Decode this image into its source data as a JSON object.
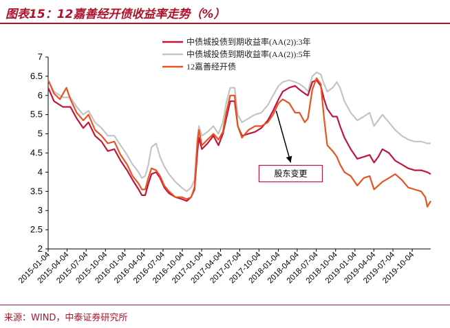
{
  "header": {
    "title": "图表15：12嘉善经开债收益率走势（%）"
  },
  "footer": {
    "source": "来源：WIND，中泰证券研究所"
  },
  "colors": {
    "accent": "#b0112a",
    "series_3y": "#c0143c",
    "series_5y": "#c4c4c4",
    "series_bond": "#e8521f"
  },
  "chart_data": {
    "type": "line",
    "title": "",
    "xlabel": "",
    "ylabel": "",
    "ylim": [
      2,
      7
    ],
    "yticks": [
      "2",
      "2.5",
      "3",
      "3.5",
      "4",
      "4.5",
      "5",
      "5.5",
      "6",
      "6.5",
      "7"
    ],
    "grid": false,
    "legend_position": "top-right",
    "x_tick_labels": [
      "2015-01-04",
      "2015-04-04",
      "2015-07-04",
      "2015-10-04",
      "2016-01-04",
      "2016-04-04",
      "2016-07-04",
      "2016-10-04",
      "2017-01-04",
      "2017-04-04",
      "2017-07-04",
      "2017-10-04",
      "2018-01-04",
      "2018-04-04",
      "2018-07-04",
      "2018-10-04",
      "2019-01-04",
      "2019-04-04",
      "2019-07-04",
      "2019-10-04"
    ],
    "x_start": "2015-01-04",
    "x_end": "2019-12-31",
    "annotation": {
      "text": "股东变更",
      "arrow_from_date": "2017-12-25",
      "arrow_from_value": 5.6,
      "arrow_to_date": "2018-03-04",
      "arrow_to_value": 4.25
    },
    "series": [
      {
        "name": "中债城投债到期收益率(AA(2)):3年",
        "color": "#c0143c",
        "points": [
          [
            "2015-01-04",
            6.2
          ],
          [
            "2015-02-01",
            5.85
          ],
          [
            "2015-03-15",
            5.7
          ],
          [
            "2015-04-20",
            5.7
          ],
          [
            "2015-05-20",
            5.4
          ],
          [
            "2015-06-20",
            5.15
          ],
          [
            "2015-07-15",
            5.3
          ],
          [
            "2015-08-15",
            4.95
          ],
          [
            "2015-09-15",
            4.8
          ],
          [
            "2015-10-15",
            4.55
          ],
          [
            "2015-11-15",
            4.6
          ],
          [
            "2015-12-15",
            4.3
          ],
          [
            "2016-01-15",
            4.05
          ],
          [
            "2016-02-10",
            3.8
          ],
          [
            "2016-03-10",
            3.55
          ],
          [
            "2016-03-25",
            3.4
          ],
          [
            "2016-04-10",
            3.4
          ],
          [
            "2016-04-25",
            3.7
          ],
          [
            "2016-05-10",
            3.95
          ],
          [
            "2016-06-01",
            4.0
          ],
          [
            "2016-06-20",
            3.85
          ],
          [
            "2016-07-10",
            3.6
          ],
          [
            "2016-08-01",
            3.45
          ],
          [
            "2016-09-01",
            3.35
          ],
          [
            "2016-10-01",
            3.3
          ],
          [
            "2016-10-25",
            3.25
          ],
          [
            "2016-11-15",
            3.35
          ],
          [
            "2016-12-01",
            3.55
          ],
          [
            "2016-12-15",
            4.55
          ],
          [
            "2016-12-22",
            4.9
          ],
          [
            "2017-01-05",
            4.6
          ],
          [
            "2017-02-01",
            4.75
          ],
          [
            "2017-03-01",
            4.95
          ],
          [
            "2017-03-25",
            4.7
          ],
          [
            "2017-04-15",
            5.0
          ],
          [
            "2017-05-01",
            5.4
          ],
          [
            "2017-05-20",
            5.85
          ],
          [
            "2017-06-10",
            5.85
          ],
          [
            "2017-06-25",
            5.2
          ],
          [
            "2017-07-15",
            4.95
          ],
          [
            "2017-08-15",
            5.0
          ],
          [
            "2017-09-15",
            5.05
          ],
          [
            "2017-10-15",
            5.15
          ],
          [
            "2017-11-15",
            5.35
          ],
          [
            "2017-12-10",
            5.6
          ],
          [
            "2018-01-05",
            5.9
          ],
          [
            "2018-01-25",
            6.1
          ],
          [
            "2018-02-25",
            6.2
          ],
          [
            "2018-03-25",
            6.25
          ],
          [
            "2018-04-15",
            6.15
          ],
          [
            "2018-05-10",
            6.05
          ],
          [
            "2018-05-25",
            6.0
          ],
          [
            "2018-06-15",
            6.35
          ],
          [
            "2018-07-05",
            6.4
          ],
          [
            "2018-07-25",
            6.25
          ],
          [
            "2018-08-10",
            5.9
          ],
          [
            "2018-08-25",
            5.65
          ],
          [
            "2018-09-20",
            5.45
          ],
          [
            "2018-10-10",
            5.45
          ],
          [
            "2018-10-25",
            5.2
          ],
          [
            "2018-11-15",
            4.9
          ],
          [
            "2018-12-15",
            4.6
          ],
          [
            "2019-01-15",
            4.35
          ],
          [
            "2019-02-15",
            4.4
          ],
          [
            "2019-03-15",
            4.45
          ],
          [
            "2019-04-05",
            4.25
          ],
          [
            "2019-04-25",
            4.4
          ],
          [
            "2019-05-15",
            4.6
          ],
          [
            "2019-06-15",
            4.5
          ],
          [
            "2019-07-15",
            4.3
          ],
          [
            "2019-08-15",
            4.2
          ],
          [
            "2019-09-15",
            4.1
          ],
          [
            "2019-10-15",
            4.05
          ],
          [
            "2019-11-15",
            4.05
          ],
          [
            "2019-12-15",
            4.0
          ],
          [
            "2019-12-31",
            3.95
          ]
        ]
      },
      {
        "name": "中债城投债到期收益率(AA(2)):5年",
        "color": "#c4c4c4",
        "points": [
          [
            "2015-01-04",
            6.4
          ],
          [
            "2015-02-01",
            6.1
          ],
          [
            "2015-03-15",
            5.95
          ],
          [
            "2015-04-20",
            5.95
          ],
          [
            "2015-05-20",
            5.7
          ],
          [
            "2015-06-20",
            5.5
          ],
          [
            "2015-07-15",
            5.6
          ],
          [
            "2015-08-15",
            5.3
          ],
          [
            "2015-09-15",
            5.15
          ],
          [
            "2015-10-15",
            4.95
          ],
          [
            "2015-11-15",
            4.95
          ],
          [
            "2015-12-15",
            4.7
          ],
          [
            "2016-01-15",
            4.45
          ],
          [
            "2016-02-10",
            4.2
          ],
          [
            "2016-03-10",
            4.0
          ],
          [
            "2016-03-25",
            3.85
          ],
          [
            "2016-04-10",
            3.9
          ],
          [
            "2016-04-25",
            4.2
          ],
          [
            "2016-05-10",
            4.65
          ],
          [
            "2016-06-01",
            4.75
          ],
          [
            "2016-06-20",
            4.4
          ],
          [
            "2016-07-10",
            4.15
          ],
          [
            "2016-08-01",
            3.95
          ],
          [
            "2016-09-01",
            3.75
          ],
          [
            "2016-10-01",
            3.6
          ],
          [
            "2016-10-25",
            3.5
          ],
          [
            "2016-11-15",
            3.6
          ],
          [
            "2016-12-01",
            3.8
          ],
          [
            "2016-12-15",
            4.9
          ],
          [
            "2016-12-22",
            5.2
          ],
          [
            "2017-01-05",
            4.95
          ],
          [
            "2017-02-01",
            5.05
          ],
          [
            "2017-03-01",
            5.2
          ],
          [
            "2017-03-25",
            5.0
          ],
          [
            "2017-04-15",
            5.3
          ],
          [
            "2017-05-01",
            5.8
          ],
          [
            "2017-05-20",
            6.2
          ],
          [
            "2017-06-10",
            6.2
          ],
          [
            "2017-06-25",
            5.5
          ],
          [
            "2017-07-15",
            5.3
          ],
          [
            "2017-08-15",
            5.4
          ],
          [
            "2017-09-15",
            5.5
          ],
          [
            "2017-10-15",
            5.55
          ],
          [
            "2017-11-15",
            5.75
          ],
          [
            "2017-12-10",
            6.0
          ],
          [
            "2018-01-05",
            6.25
          ],
          [
            "2018-01-25",
            6.35
          ],
          [
            "2018-02-25",
            6.4
          ],
          [
            "2018-03-25",
            6.35
          ],
          [
            "2018-04-15",
            6.3
          ],
          [
            "2018-05-10",
            6.2
          ],
          [
            "2018-05-25",
            6.1
          ],
          [
            "2018-06-15",
            6.5
          ],
          [
            "2018-07-05",
            6.6
          ],
          [
            "2018-07-25",
            6.55
          ],
          [
            "2018-08-10",
            6.3
          ],
          [
            "2018-08-25",
            6.1
          ],
          [
            "2018-09-20",
            6.2
          ],
          [
            "2018-10-10",
            6.35
          ],
          [
            "2018-10-25",
            6.2
          ],
          [
            "2018-11-15",
            5.85
          ],
          [
            "2018-12-15",
            5.55
          ],
          [
            "2019-01-15",
            5.35
          ],
          [
            "2019-02-15",
            5.45
          ],
          [
            "2019-03-15",
            5.55
          ],
          [
            "2019-04-05",
            5.2
          ],
          [
            "2019-04-25",
            5.35
          ],
          [
            "2019-05-15",
            5.5
          ],
          [
            "2019-06-15",
            5.3
          ],
          [
            "2019-07-15",
            5.1
          ],
          [
            "2019-08-15",
            4.95
          ],
          [
            "2019-09-15",
            4.85
          ],
          [
            "2019-10-15",
            4.8
          ],
          [
            "2019-11-15",
            4.8
          ],
          [
            "2019-12-15",
            4.75
          ],
          [
            "2019-12-31",
            4.75
          ]
        ]
      },
      {
        "name": "12嘉善经开债",
        "color": "#e8521f",
        "points": [
          [
            "2015-01-04",
            6.4
          ],
          [
            "2015-02-01",
            6.05
          ],
          [
            "2015-03-01",
            5.9
          ],
          [
            "2015-04-01",
            6.2
          ],
          [
            "2015-04-20",
            5.9
          ],
          [
            "2015-05-20",
            5.55
          ],
          [
            "2015-06-20",
            5.35
          ],
          [
            "2015-07-15",
            5.5
          ],
          [
            "2015-08-15",
            5.1
          ],
          [
            "2015-09-15",
            4.95
          ],
          [
            "2015-10-15",
            4.75
          ],
          [
            "2015-11-15",
            4.8
          ],
          [
            "2015-12-15",
            4.45
          ],
          [
            "2016-01-15",
            4.2
          ],
          [
            "2016-02-10",
            3.9
          ],
          [
            "2016-03-10",
            3.7
          ],
          [
            "2016-03-25",
            3.55
          ],
          [
            "2016-04-10",
            3.55
          ],
          [
            "2016-04-25",
            3.85
          ],
          [
            "2016-05-10",
            4.1
          ],
          [
            "2016-06-01",
            4.05
          ],
          [
            "2016-06-20",
            3.9
          ],
          [
            "2016-07-10",
            3.65
          ],
          [
            "2016-08-01",
            3.5
          ],
          [
            "2016-09-01",
            3.35
          ],
          [
            "2016-10-01",
            3.35
          ],
          [
            "2016-10-25",
            3.3
          ],
          [
            "2016-11-15",
            3.35
          ],
          [
            "2016-12-01",
            3.6
          ],
          [
            "2016-12-15",
            4.8
          ],
          [
            "2016-12-22",
            5.1
          ],
          [
            "2017-01-05",
            4.7
          ],
          [
            "2017-02-01",
            4.85
          ],
          [
            "2017-03-01",
            5.0
          ],
          [
            "2017-03-25",
            4.85
          ],
          [
            "2017-04-15",
            5.05
          ],
          [
            "2017-05-01",
            5.55
          ],
          [
            "2017-05-20",
            6.0
          ],
          [
            "2017-06-10",
            6.0
          ],
          [
            "2017-06-25",
            5.2
          ],
          [
            "2017-07-15",
            4.9
          ],
          [
            "2017-08-15",
            5.1
          ],
          [
            "2017-09-15",
            5.2
          ],
          [
            "2017-10-15",
            5.2
          ],
          [
            "2017-11-15",
            5.3
          ],
          [
            "2017-12-10",
            5.5
          ],
          [
            "2018-01-05",
            5.8
          ],
          [
            "2018-01-25",
            5.9
          ],
          [
            "2018-02-25",
            5.8
          ],
          [
            "2018-03-25",
            5.55
          ],
          [
            "2018-04-15",
            5.55
          ],
          [
            "2018-05-10",
            5.3
          ],
          [
            "2018-05-25",
            5.4
          ],
          [
            "2018-06-15",
            6.15
          ],
          [
            "2018-07-05",
            6.45
          ],
          [
            "2018-07-25",
            6.3
          ],
          [
            "2018-08-10",
            5.4
          ],
          [
            "2018-08-25",
            4.7
          ],
          [
            "2018-09-20",
            4.55
          ],
          [
            "2018-10-10",
            4.4
          ],
          [
            "2018-10-25",
            4.2
          ],
          [
            "2018-11-15",
            4.0
          ],
          [
            "2018-12-15",
            3.9
          ],
          [
            "2019-01-15",
            3.65
          ],
          [
            "2019-02-15",
            3.85
          ],
          [
            "2019-03-15",
            3.9
          ],
          [
            "2019-04-05",
            3.55
          ],
          [
            "2019-04-25",
            3.65
          ],
          [
            "2019-05-15",
            3.75
          ],
          [
            "2019-06-15",
            3.85
          ],
          [
            "2019-07-15",
            3.95
          ],
          [
            "2019-08-15",
            3.8
          ],
          [
            "2019-09-15",
            3.6
          ],
          [
            "2019-10-15",
            3.55
          ],
          [
            "2019-11-15",
            3.5
          ],
          [
            "2019-12-05",
            3.35
          ],
          [
            "2019-12-15",
            3.1
          ],
          [
            "2019-12-31",
            3.25
          ]
        ]
      }
    ]
  }
}
